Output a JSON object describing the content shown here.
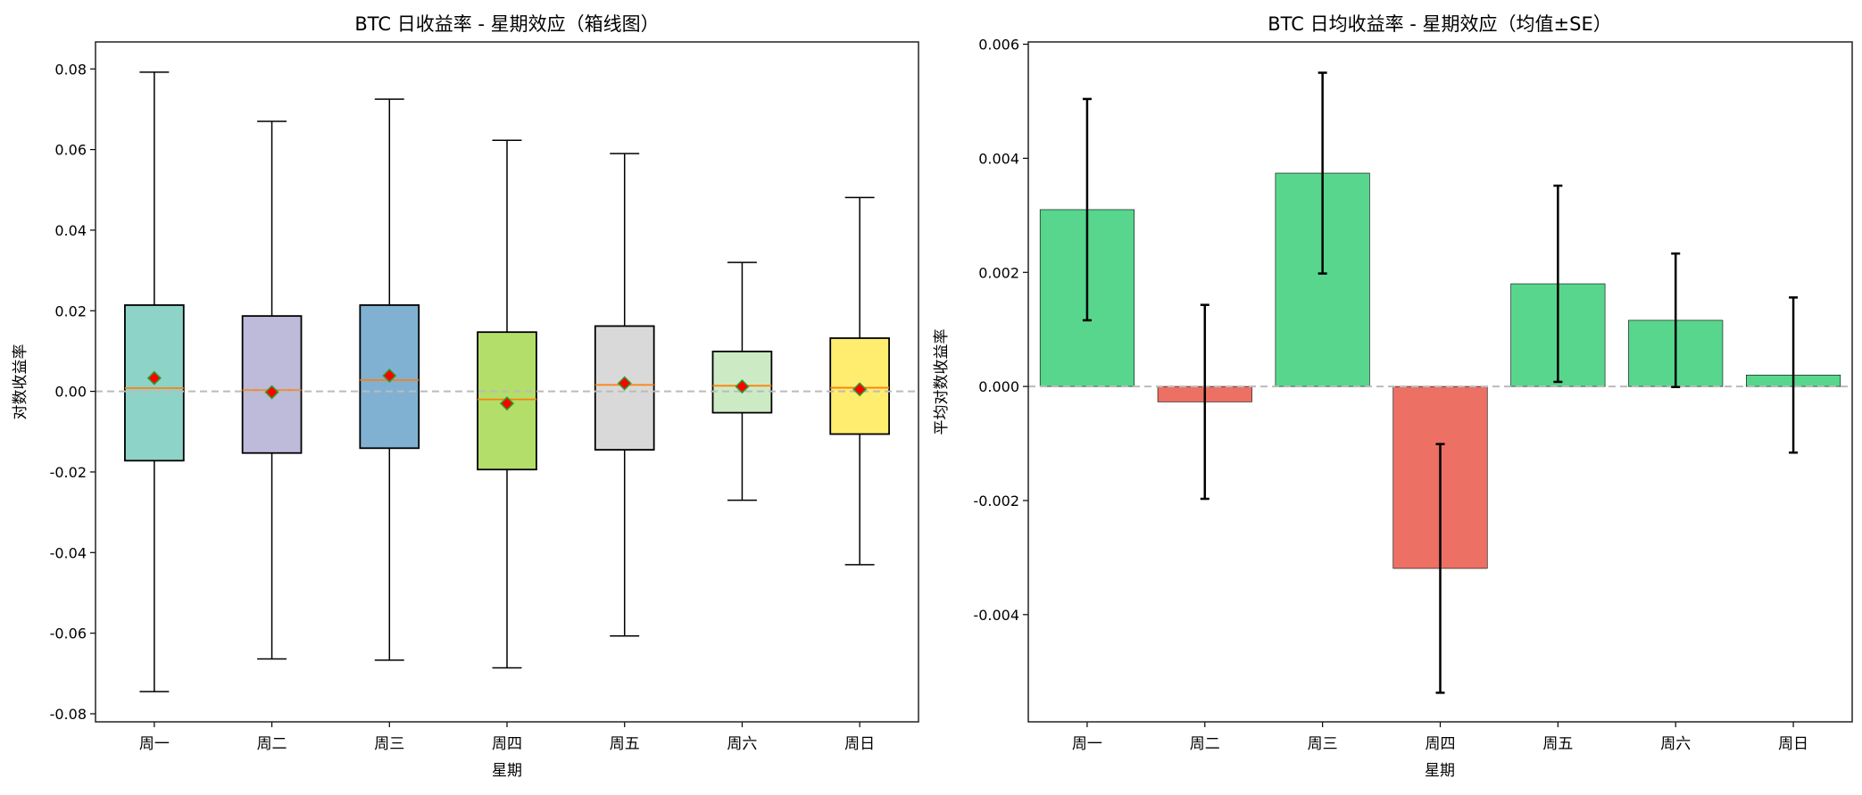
{
  "chart_data": [
    {
      "type": "box",
      "title": "BTC 日收益率 - 星期效应（箱线图）",
      "xlabel": "星期",
      "ylabel": "对数收益率",
      "ylim": [
        -0.082,
        0.0867
      ],
      "yticks": [
        0.08,
        0.06,
        0.04,
        0.02,
        0.0,
        -0.02,
        -0.04,
        -0.06,
        -0.08
      ],
      "ytick_labels": [
        "0.08",
        "0.06",
        "0.04",
        "0.02",
        "0.00",
        "-0.02",
        "-0.04",
        "-0.06",
        "-0.08"
      ],
      "categories": [
        "周一",
        "周二",
        "周三",
        "周四",
        "周五",
        "周六",
        "周日"
      ],
      "boxes": [
        {
          "whisker_low": -0.0745,
          "q1": -0.0172,
          "median": 0.0008,
          "q3": 0.0214,
          "whisker_high": 0.0792,
          "mean": 0.0033
        },
        {
          "whisker_low": -0.0664,
          "q1": -0.0153,
          "median": 0.0003,
          "q3": 0.0187,
          "whisker_high": 0.067,
          "mean": -0.0002
        },
        {
          "whisker_low": -0.0667,
          "q1": -0.0141,
          "median": 0.0028,
          "q3": 0.0214,
          "whisker_high": 0.0725,
          "mean": 0.0039
        },
        {
          "whisker_low": -0.0686,
          "q1": -0.0194,
          "median": -0.002,
          "q3": 0.0147,
          "whisker_high": 0.0623,
          "mean": -0.003
        },
        {
          "whisker_low": -0.0607,
          "q1": -0.0145,
          "median": 0.0016,
          "q3": 0.0162,
          "whisker_high": 0.059,
          "mean": 0.002
        },
        {
          "whisker_low": -0.027,
          "q1": -0.0053,
          "median": 0.0014,
          "q3": 0.0099,
          "whisker_high": 0.032,
          "mean": 0.0012
        },
        {
          "whisker_low": -0.043,
          "q1": -0.0106,
          "median": 0.0009,
          "q3": 0.0132,
          "whisker_high": 0.0481,
          "mean": 0.0005
        }
      ],
      "box_colors": [
        "#8dd3c7",
        "#bebada",
        "#80b1d3",
        "#b3de69",
        "#d9d9d9",
        "#ccebc5",
        "#ffed6f"
      ],
      "median_color": "#ff7f0e",
      "mean_marker_color": "#ff0000",
      "mean_marker_edge": "#2ca02c",
      "reference_line": {
        "y": 0,
        "style": "dashed",
        "color": "#bbbbbb"
      },
      "grid": false
    },
    {
      "type": "bar",
      "title": "BTC 日均收益率 - 星期效应（均值±SE）",
      "xlabel": "星期",
      "ylabel": "平均对数收益率",
      "ylim": [
        -0.00588,
        0.00604
      ],
      "yticks": [
        0.006,
        0.004,
        0.002,
        0.0,
        -0.002,
        -0.004
      ],
      "ytick_labels": [
        "0.006",
        "0.004",
        "0.002",
        "0.000",
        "-0.002",
        "-0.004"
      ],
      "categories": [
        "周一",
        "周二",
        "周三",
        "周四",
        "周五",
        "周六",
        "周日"
      ],
      "values": [
        0.0031,
        -0.00027,
        0.00374,
        -0.00319,
        0.0018,
        0.00116,
        0.0002
      ],
      "errors": [
        0.00194,
        0.0017,
        0.00176,
        0.00218,
        0.00172,
        0.00117,
        0.00136
      ],
      "positive_color": "#58d68d",
      "negative_color": "#ec7063",
      "reference_line": {
        "y": 0,
        "style": "dashed",
        "color": "#bbbbbb"
      },
      "grid": false
    }
  ]
}
